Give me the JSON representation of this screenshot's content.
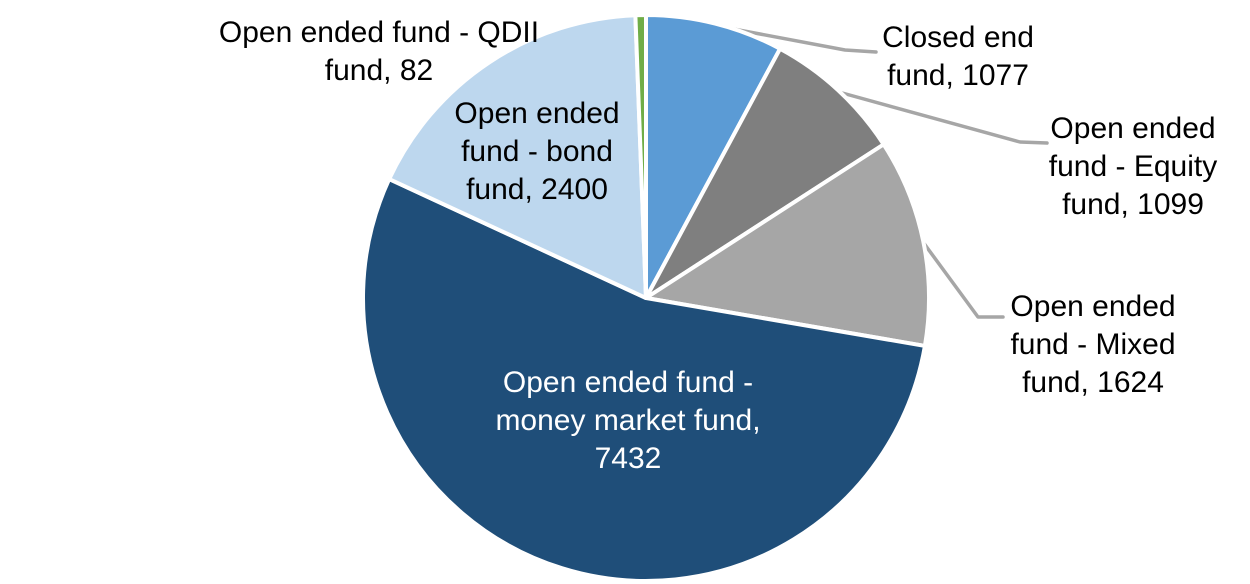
{
  "chart_data": {
    "type": "pie",
    "title": "",
    "legend_position": "none",
    "direction": "clockwise",
    "start_angle_deg": 0,
    "background_color": "#FFFFFF",
    "slice_border_color": "#FFFFFF",
    "leader_line_color": "#A6A6A6",
    "outside_label_color": "#000000",
    "inside_label_color": "#FFFFFF",
    "slices": [
      {
        "label": "Closed end fund",
        "value": 1077,
        "color": "#5B9BD5"
      },
      {
        "label": "Open ended fund - Equity fund",
        "value": 1099,
        "color": "#7F7F7F"
      },
      {
        "label": "Open ended fund - Mixed fund",
        "value": 1624,
        "color": "#A6A6A6"
      },
      {
        "label": "Open ended fund - money market fund",
        "value": 7432,
        "color": "#1F4E79"
      },
      {
        "label": "Open ended fund - bond fund",
        "value": 2400,
        "color": "#BDD7EE"
      },
      {
        "label": "Open ended fund - QDII fund",
        "value": 82,
        "color": "#70AD47"
      }
    ]
  },
  "annotations": {
    "qdii": {
      "lines": [
        "Open ended fund - QDII",
        "fund, 82"
      ]
    },
    "bond": {
      "lines": [
        "Open ended",
        "fund - bond",
        "fund, 2400"
      ]
    },
    "closed": {
      "lines": [
        "Closed end",
        "fund, 1077"
      ]
    },
    "equity": {
      "lines": [
        "Open ended",
        "fund - Equity",
        "fund, 1099"
      ]
    },
    "mixed": {
      "lines": [
        "Open ended",
        "fund - Mixed",
        "fund, 1624"
      ]
    },
    "money": {
      "lines": [
        "Open ended fund -",
        "money market fund,",
        "7432"
      ]
    }
  }
}
